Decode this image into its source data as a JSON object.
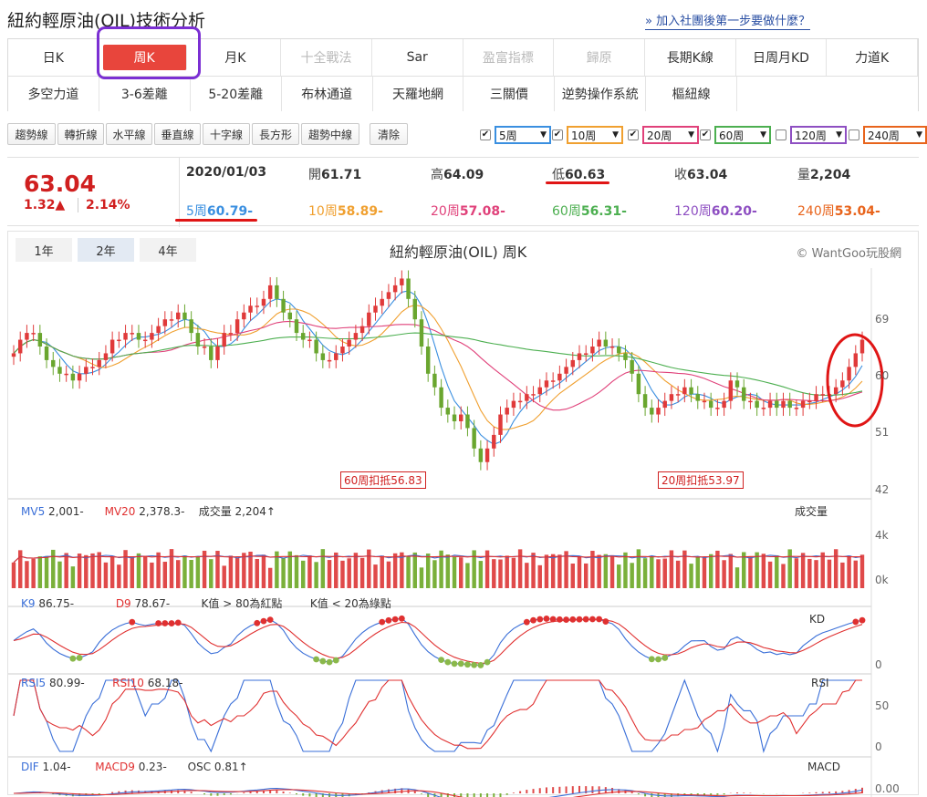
{
  "header": {
    "title": "紐約輕原油(OIL)技術分析",
    "help_link": "» 加入社團後第一步要做什麼？"
  },
  "nav": {
    "row1": [
      {
        "label": "日K",
        "state": "normal"
      },
      {
        "label": "周K",
        "state": "active"
      },
      {
        "label": "月K",
        "state": "normal"
      },
      {
        "label": "十全戰法",
        "state": "disabled"
      },
      {
        "label": "Sar",
        "state": "normal"
      },
      {
        "label": "盈富指標",
        "state": "disabled"
      },
      {
        "label": "歸原",
        "state": "disabled"
      },
      {
        "label": "長期K線",
        "state": "normal"
      },
      {
        "label": "日周月KD",
        "state": "normal"
      },
      {
        "label": "力道K",
        "state": "normal"
      }
    ],
    "row2": [
      {
        "label": "多空力道",
        "state": "normal"
      },
      {
        "label": "3-6差離",
        "state": "normal"
      },
      {
        "label": "5-20差離",
        "state": "normal"
      },
      {
        "label": "布林通道",
        "state": "normal"
      },
      {
        "label": "天羅地網",
        "state": "normal"
      },
      {
        "label": "三關價",
        "state": "normal"
      },
      {
        "label": "逆勢操作系統",
        "state": "normal"
      },
      {
        "label": "樞紐線",
        "state": "normal"
      }
    ]
  },
  "toolbar": {
    "tools": [
      "趨勢線",
      "轉折線",
      "水平線",
      "垂直線",
      "十字線",
      "長方形",
      "趨勢中線"
    ],
    "clear": "清除",
    "ma_selects": [
      {
        "label": "5周",
        "checked": true,
        "color": "#3a8fe0"
      },
      {
        "label": "10周",
        "checked": true,
        "color": "#f0a030"
      },
      {
        "label": "20周",
        "checked": true,
        "color": "#e0417a"
      },
      {
        "label": "60周",
        "checked": true,
        "color": "#4caf50"
      },
      {
        "label": "120周",
        "checked": false,
        "color": "#8e4fc2"
      },
      {
        "label": "240周",
        "checked": false,
        "color": "#e8641c"
      }
    ],
    "check_mark": "✔",
    "dropdown_arrow": "▼"
  },
  "quote": {
    "price": "63.04",
    "change": "1.32▲",
    "change_pct": "2.14%",
    "date": "2020/01/03",
    "open_label": "開",
    "open": "61.71",
    "high_label": "高",
    "high": "64.09",
    "low_label": "低",
    "low": "60.63",
    "close_label": "收",
    "close": "63.04",
    "vol_label": "量",
    "vol": "2,204",
    "ma": [
      {
        "label": "5周",
        "value": "60.79-",
        "color": "#3a8fe0"
      },
      {
        "label": "10周",
        "value": "58.89-",
        "color": "#f0a030"
      },
      {
        "label": "20周",
        "value": "57.08-",
        "color": "#e0417a"
      },
      {
        "label": "60周",
        "value": "56.31-",
        "color": "#4caf50"
      },
      {
        "label": "120周",
        "value": "60.20-",
        "color": "#8e4fc2"
      },
      {
        "label": "240周",
        "value": "53.04-",
        "color": "#e8641c"
      }
    ]
  },
  "chart": {
    "ranges": [
      "1年",
      "2年",
      "4年"
    ],
    "active_range": "2年",
    "title": "紐約輕原油(OIL) 周K",
    "credit": "© WantGoo玩股網",
    "price_ticks": [
      "69",
      "60",
      "51",
      "42"
    ],
    "deduct_labels": [
      "60周扣抵56.83",
      "20周扣抵53.97"
    ],
    "volume": {
      "mv5_label": "MV5",
      "mv5": "2,001-",
      "mv20_label": "MV20",
      "mv20": "2,378.3-",
      "vol_text": "成交量 2,204↑",
      "name": "成交量",
      "ticks": [
        "4k",
        "0k"
      ]
    },
    "kd": {
      "k_label": "K9",
      "k": "86.75-",
      "d_label": "D9",
      "d": "78.67-",
      "note1": "K值 > 80為紅點",
      "note2": "K值 < 20為綠點",
      "name": "KD",
      "ticks": [
        "0"
      ]
    },
    "rsi": {
      "rsi5_label": "RSI5",
      "rsi5": "80.99-",
      "rsi10_label": "RSI10",
      "rsi10": "68.18-",
      "name": "RSI",
      "ticks": [
        "50",
        "0"
      ]
    },
    "macd": {
      "dif_label": "DIF",
      "dif": "1.04-",
      "macd_label": "MACD9",
      "macd": "0.23-",
      "osc": "OSC 0.81↑",
      "name": "MACD",
      "ticks": [
        "0.00"
      ]
    }
  },
  "chart_data": {
    "type": "candlestick",
    "title": "紐約輕原油(OIL) 周K",
    "ylim": [
      40,
      73
    ],
    "closes": [
      61,
      63,
      64,
      64,
      62,
      60,
      59,
      58,
      58,
      57,
      58,
      59,
      59,
      60,
      61,
      63,
      63,
      64,
      64,
      63,
      63,
      64,
      65,
      66,
      66,
      67,
      66,
      64,
      62,
      62,
      60,
      62,
      64,
      64,
      66,
      67,
      68,
      68,
      69,
      71,
      69,
      67,
      66,
      64,
      63,
      63,
      61,
      60,
      60,
      61,
      62,
      63,
      64,
      65,
      67,
      68,
      69,
      70,
      71,
      72,
      69,
      66,
      62,
      58,
      56,
      53,
      52,
      51,
      52,
      50,
      47,
      45,
      47,
      49,
      52,
      53,
      54,
      54,
      55,
      55,
      56,
      57,
      57,
      58,
      59,
      60,
      61,
      61,
      62,
      63,
      62,
      62,
      61,
      60,
      58,
      55,
      53,
      52,
      53,
      54,
      55,
      55,
      56,
      55,
      54,
      54,
      53,
      53,
      54,
      57,
      56,
      54,
      54,
      53,
      53,
      54,
      53,
      54,
      53,
      53,
      54,
      54,
      55,
      55,
      55,
      56,
      57,
      59,
      61,
      63
    ]
  }
}
